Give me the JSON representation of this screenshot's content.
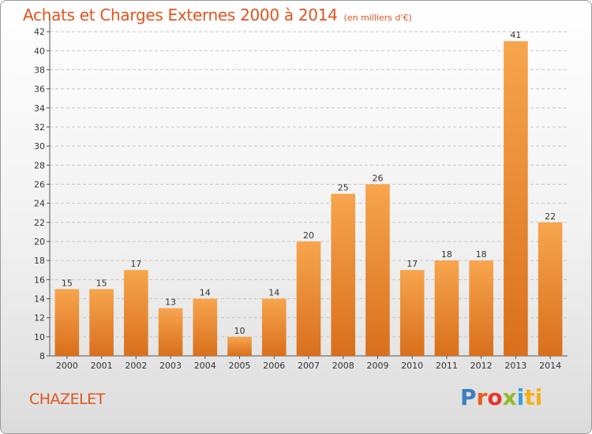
{
  "header": {
    "title": "Achats et Charges Externes 2000 à 2014",
    "subtitle": "(en milliers d'€)"
  },
  "footer": {
    "place": "CHAZELET",
    "logo": [
      "P",
      "r",
      "o",
      "x",
      "i",
      "ti"
    ]
  },
  "colors": {
    "accent": "#e0541e",
    "bar_top": "#f7a54e",
    "bar_bottom": "#d96f1c",
    "grid": "#c8c8c8"
  },
  "chart_data": {
    "type": "bar",
    "title": "Achats et Charges Externes 2000 à 2014",
    "subtitle": "(en milliers d'€)",
    "xlabel": "",
    "ylabel": "",
    "categories": [
      "2000",
      "2001",
      "2002",
      "2003",
      "2004",
      "2005",
      "2006",
      "2007",
      "2008",
      "2009",
      "2010",
      "2011",
      "2012",
      "2013",
      "2014"
    ],
    "values": [
      15,
      15,
      17,
      13,
      14,
      10,
      14,
      20,
      25,
      26,
      17,
      18,
      18,
      41,
      22
    ],
    "ylim": [
      8,
      43
    ],
    "yticks": [
      8,
      10,
      12,
      14,
      16,
      18,
      20,
      22,
      24,
      26,
      28,
      30,
      32,
      34,
      36,
      38,
      40,
      42
    ],
    "grid": true,
    "legend": "none",
    "data_labels": true
  }
}
